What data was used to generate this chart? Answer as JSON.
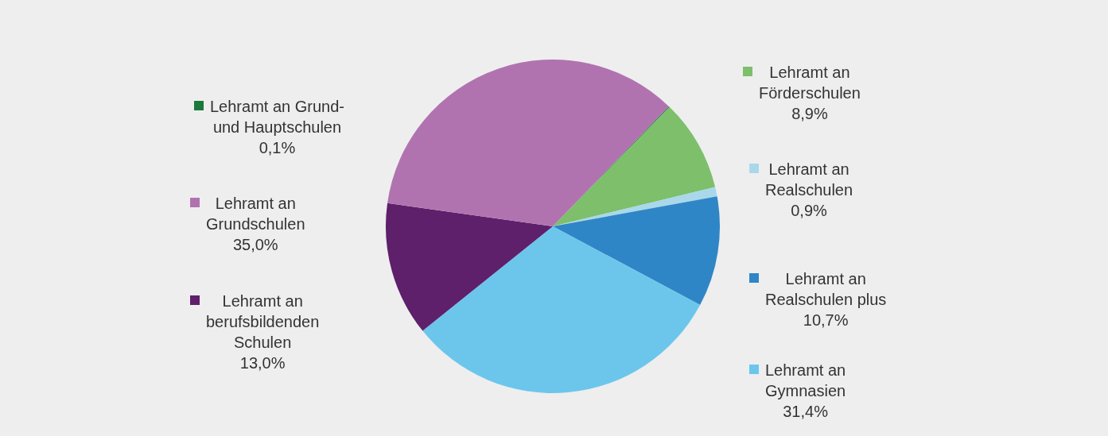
{
  "chart_data": {
    "type": "pie",
    "categories": [
      "Lehramt an Grund- und Hauptschulen",
      "Lehramt an Förderschulen",
      "Lehramt an Realschulen",
      "Lehramt an Realschulen plus",
      "Lehramt an Gymnasien",
      "Lehramt an berufsbildenden Schulen",
      "Lehramt an Grundschulen"
    ],
    "values": [
      0.1,
      8.9,
      0.9,
      10.7,
      31.4,
      13.0,
      35.0
    ],
    "legend": "right",
    "value_labels": [
      "0,1%",
      "8,9%",
      "0,9%",
      "10,7%",
      "31,4%",
      "13,0%",
      "35,0%"
    ],
    "colors": [
      "#1a7a3a",
      "#7dbf6a",
      "#a8d8ea",
      "#2f86c6",
      "#6cc6ec",
      "#5e1f6b",
      "#b173b0"
    ]
  }
}
